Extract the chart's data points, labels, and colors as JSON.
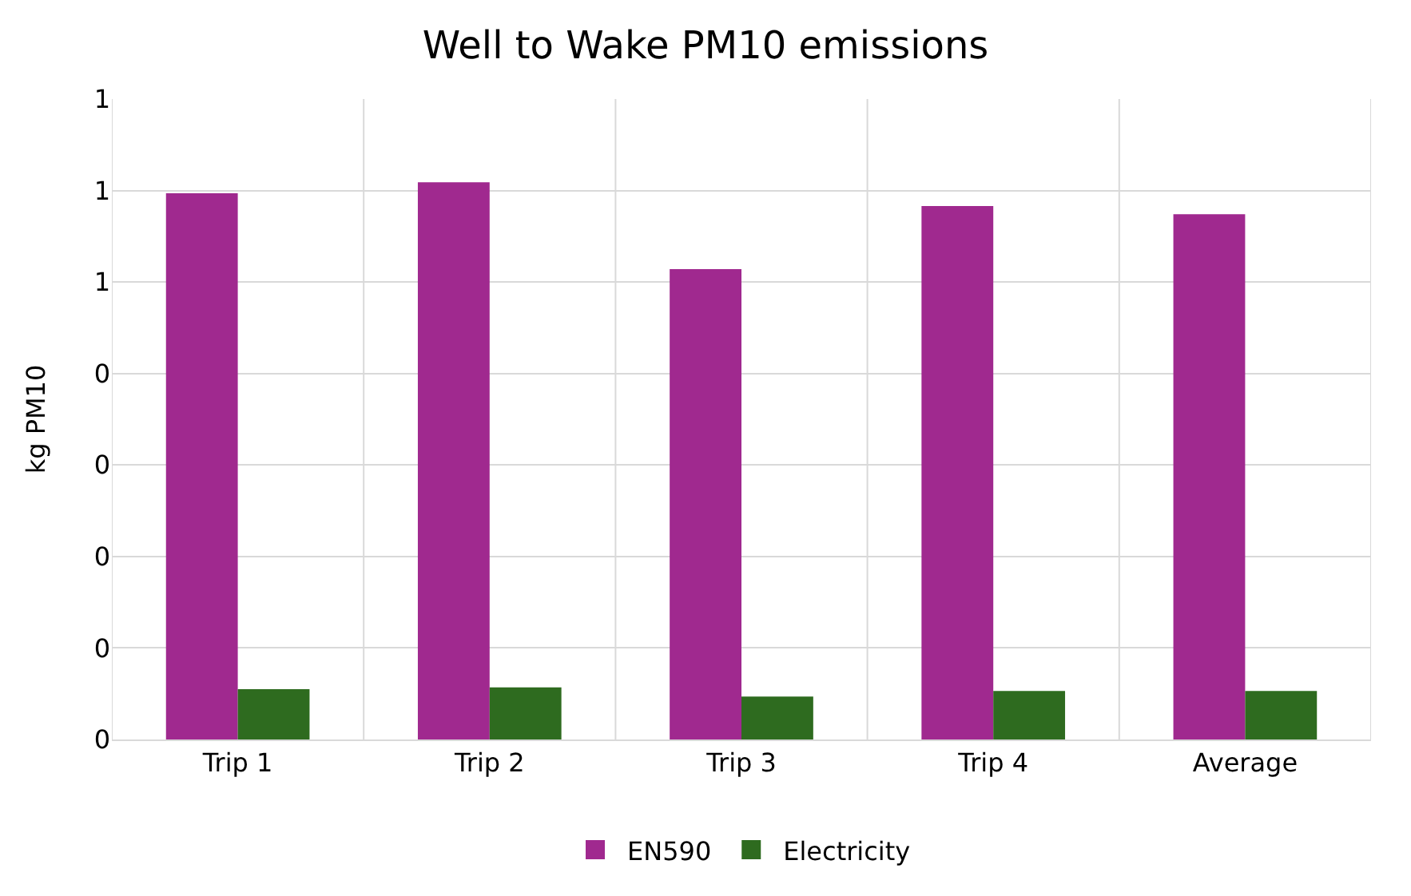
{
  "chart_data": {
    "type": "bar",
    "title": "Well to Wake PM10 emissions",
    "ylabel": "kg PM10",
    "categories": [
      "Trip 1",
      "Trip 2",
      "Trip 3",
      "Trip 4",
      "Average"
    ],
    "series": [
      {
        "name": "EN590",
        "color": "#a0298f",
        "values": [
          0.597,
          0.609,
          0.514,
          0.583,
          0.574
        ]
      },
      {
        "name": "Electricity",
        "color": "#2e6b1f",
        "values": [
          0.055,
          0.057,
          0.047,
          0.053,
          0.053
        ]
      }
    ],
    "ylim": [
      0,
      0.7
    ],
    "yticks": [
      {
        "value": 0,
        "label": "0"
      },
      {
        "value": 0.1,
        "label": "0"
      },
      {
        "value": 0.2,
        "label": "0"
      },
      {
        "value": 0.3,
        "label": "0"
      },
      {
        "value": 0.4,
        "label": "0"
      },
      {
        "value": 0.5,
        "label": "1"
      },
      {
        "value": 0.6,
        "label": "1"
      },
      {
        "value": 0.7,
        "label": "1"
      }
    ],
    "grid": true,
    "legend": "bottom"
  }
}
